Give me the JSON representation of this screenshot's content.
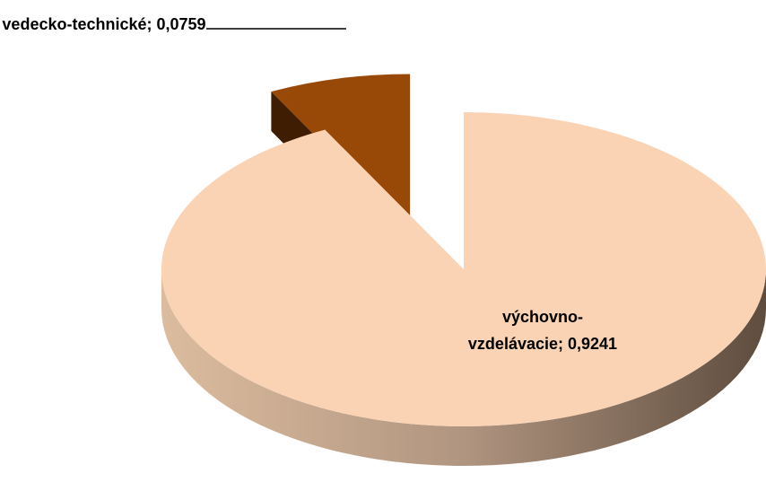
{
  "chart_data": {
    "type": "pie",
    "categories": [
      "vedecko-technické",
      "výchovno-vzdelávacie"
    ],
    "values": [
      0.0759,
      0.9241
    ],
    "value_labels": [
      "0,0759",
      "0,9241"
    ],
    "label_separator": "; ",
    "colors": [
      "#984807",
      "#fad2b4"
    ]
  }
}
